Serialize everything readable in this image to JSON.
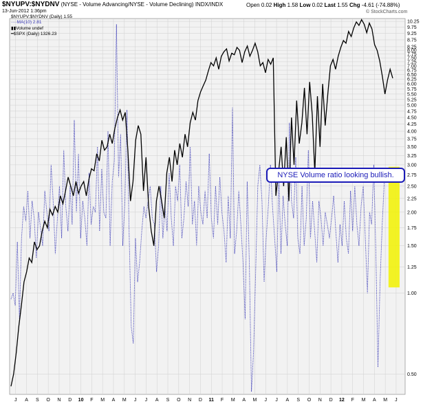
{
  "header": {
    "symbol": "$NYUPV:$NYDNV",
    "description": "(NYSE - Volume Advancing/NYSE - Volume Declining)",
    "exchange": "INDX/INDX",
    "date": "13-Jun-2012 1:36pm",
    "open_label": "Open",
    "open": "0.02",
    "high_label": "High",
    "high": "1.58",
    "low_label": "Low",
    "low": "0.02",
    "last_label": "Last",
    "last": "1.55",
    "chg_label": "Chg",
    "chg": "-4.61 (-74.88%)",
    "watermark": "© StockCharts.com"
  },
  "legend": [
    {
      "text": "$NYUPV:$NYDNV (Daily) 1.55",
      "marker": "none"
    },
    {
      "text": "MA(10) 2.81",
      "marker": "dotted-blue"
    },
    {
      "text": "Volume undef",
      "marker": "bars"
    },
    {
      "text": "$SPX (Daily) 1326.23",
      "marker": "solid-black"
    }
  ],
  "annotation": {
    "text": "NYSE Volume ratio looking bullish."
  },
  "colors": {
    "ma": "#3434b4",
    "spx": "#000000",
    "highlight": "#f2f200",
    "grid": "#cfcfcf",
    "callout": "#1a1ab8"
  },
  "chart_data": {
    "type": "line",
    "y_scale": "log",
    "ylim": [
      0.42,
      10.5
    ],
    "y_ticks": [
      "0.50",
      "1.00",
      "1.25",
      "1.50",
      "1.75",
      "2.00",
      "2.25",
      "2.50",
      "2.75",
      "3.00",
      "3.25",
      "3.50",
      "3.75",
      "4.00",
      "4.25",
      "4.50",
      "4.75",
      "5.00",
      "5.25",
      "5.50",
      "5.75",
      "6.00",
      "6.25",
      "6.50",
      "6.75",
      "7.00",
      "7.25",
      "7.50",
      "7.75",
      "8.00",
      "8.25",
      "8.75",
      "9.25",
      "9.75",
      "10.25"
    ],
    "x_ticks": [
      "J",
      "A",
      "S",
      "O",
      "N",
      "D",
      "10",
      "F",
      "M",
      "A",
      "M",
      "J",
      "J",
      "A",
      "S",
      "O",
      "N",
      "D",
      "11",
      "F",
      "M",
      "A",
      "M",
      "J",
      "J",
      "A",
      "S",
      "O",
      "N",
      "D",
      "12",
      "F",
      "M",
      "A",
      "M",
      "J"
    ],
    "series": [
      {
        "name": "MA(10)",
        "style": "dotted",
        "values": [
          0.95,
          1.0,
          0.9,
          1.55,
          0.8,
          1.6,
          2.1,
          1.85,
          2.4,
          1.6,
          2.2,
          1.9,
          1.35,
          2.0,
          1.75,
          1.5,
          2.4,
          2.0,
          1.7,
          3.0,
          2.2,
          1.4,
          1.9,
          2.5,
          1.6,
          3.4,
          2.1,
          1.7,
          2.5,
          1.8,
          4.4,
          2.0,
          3.3,
          1.6,
          2.2,
          1.9,
          1.5,
          2.8,
          1.8,
          2.1,
          2.0,
          3.5,
          1.7,
          2.9,
          2.0,
          1.9,
          4.0,
          1.5,
          2.6,
          3.1,
          10.0,
          2.7,
          3.9,
          1.5,
          2.2,
          4.8,
          1.7,
          0.75,
          0.65,
          1.6,
          1.1,
          1.3,
          1.7,
          2.1,
          1.9,
          2.2,
          2.5,
          1.9,
          1.8,
          1.2,
          1.5,
          2.5,
          1.6,
          2.1,
          1.7,
          2.8,
          1.9,
          1.5,
          2.5,
          2.2,
          3.0,
          1.6,
          1.9,
          2.6,
          2.1,
          3.5,
          1.8,
          2.2,
          1.5,
          2.5,
          2.0,
          1.8,
          2.4,
          1.9,
          3.3,
          1.9,
          1.6,
          2.5,
          1.8,
          2.7,
          2.0,
          1.7,
          1.3,
          2.3,
          1.6,
          4.9,
          1.4,
          1.7,
          2.4,
          1.8,
          1.3,
          0.8,
          2.6,
          1.3,
          0.43,
          0.6,
          1.2,
          2.5,
          3.0,
          2.2,
          1.1,
          1.6,
          2.1,
          3.0,
          2.1,
          1.6,
          1.2,
          2.7,
          1.4,
          2.3,
          1.8,
          1.5,
          4.3,
          2.2,
          1.9,
          3.2,
          1.6,
          1.4,
          2.5,
          1.5,
          1.9,
          3.4,
          1.6,
          2.2,
          1.7,
          1.3,
          2.2,
          1.9,
          1.5,
          2.0,
          1.8,
          1.6,
          1.9,
          2.3,
          1.7,
          1.3,
          1.8,
          1.5,
          2.2,
          1.6,
          1.4,
          2.4,
          1.7,
          2.5,
          1.8,
          1.5,
          2.1,
          2.5,
          1.6,
          1.0,
          2.0,
          1.8,
          3.0,
          1.4,
          0.53,
          1.1,
          1.8,
          2.6,
          2.9,
          2.8,
          2.9,
          2.81
        ]
      },
      {
        "name": "$SPX",
        "style": "solid",
        "values": [
          0.45,
          0.5,
          0.6,
          0.75,
          0.9,
          1.1,
          1.2,
          1.35,
          1.3,
          1.55,
          1.45,
          1.5,
          1.7,
          1.85,
          1.75,
          2.05,
          1.95,
          2.1,
          2.0,
          2.3,
          2.15,
          2.4,
          2.7,
          2.5,
          2.3,
          2.6,
          2.35,
          2.5,
          2.6,
          2.3,
          2.65,
          2.9,
          2.85,
          3.3,
          3.1,
          3.7,
          3.4,
          3.5,
          3.9,
          3.6,
          4.1,
          4.5,
          4.8,
          4.4,
          4.7,
          3.4,
          2.2,
          2.6,
          3.7,
          4.2,
          3.9,
          2.4,
          3.2,
          2.1,
          1.7,
          1.5,
          2.2,
          2.5,
          2.2,
          1.9,
          2.8,
          3.2,
          2.6,
          3.4,
          3.0,
          3.6,
          3.2,
          3.9,
          3.5,
          4.3,
          4.7,
          4.4,
          5.2,
          5.6,
          5.9,
          6.2,
          6.7,
          7.2,
          7.0,
          7.5,
          6.8,
          7.6,
          7.9,
          8.1,
          7.3,
          7.8,
          7.7,
          8.2,
          8.0,
          7.2,
          7.9,
          8.3,
          7.6,
          8.0,
          8.5,
          7.9,
          7.0,
          7.2,
          6.6,
          7.4,
          7.1,
          7.5,
          2.3,
          2.8,
          3.5,
          2.5,
          3.8,
          2.2,
          4.5,
          3.0,
          5.2,
          3.6,
          4.3,
          5.8,
          3.9,
          6.1,
          4.6,
          2.8,
          5.4,
          3.5,
          6.0,
          4.2,
          5.5,
          7.0,
          7.4,
          6.8,
          7.6,
          8.2,
          8.7,
          8.5,
          9.4,
          9.0,
          9.7,
          10.2,
          9.9,
          10.4,
          10.0,
          9.3,
          10.1,
          9.6,
          8.4,
          8.0,
          7.3,
          6.4,
          5.5,
          6.2,
          6.8,
          6.3
        ]
      }
    ],
    "highlight_band": {
      "x_fraction": [
        0.958,
        0.986
      ],
      "y_value": [
        1.05,
        2.95
      ]
    }
  }
}
